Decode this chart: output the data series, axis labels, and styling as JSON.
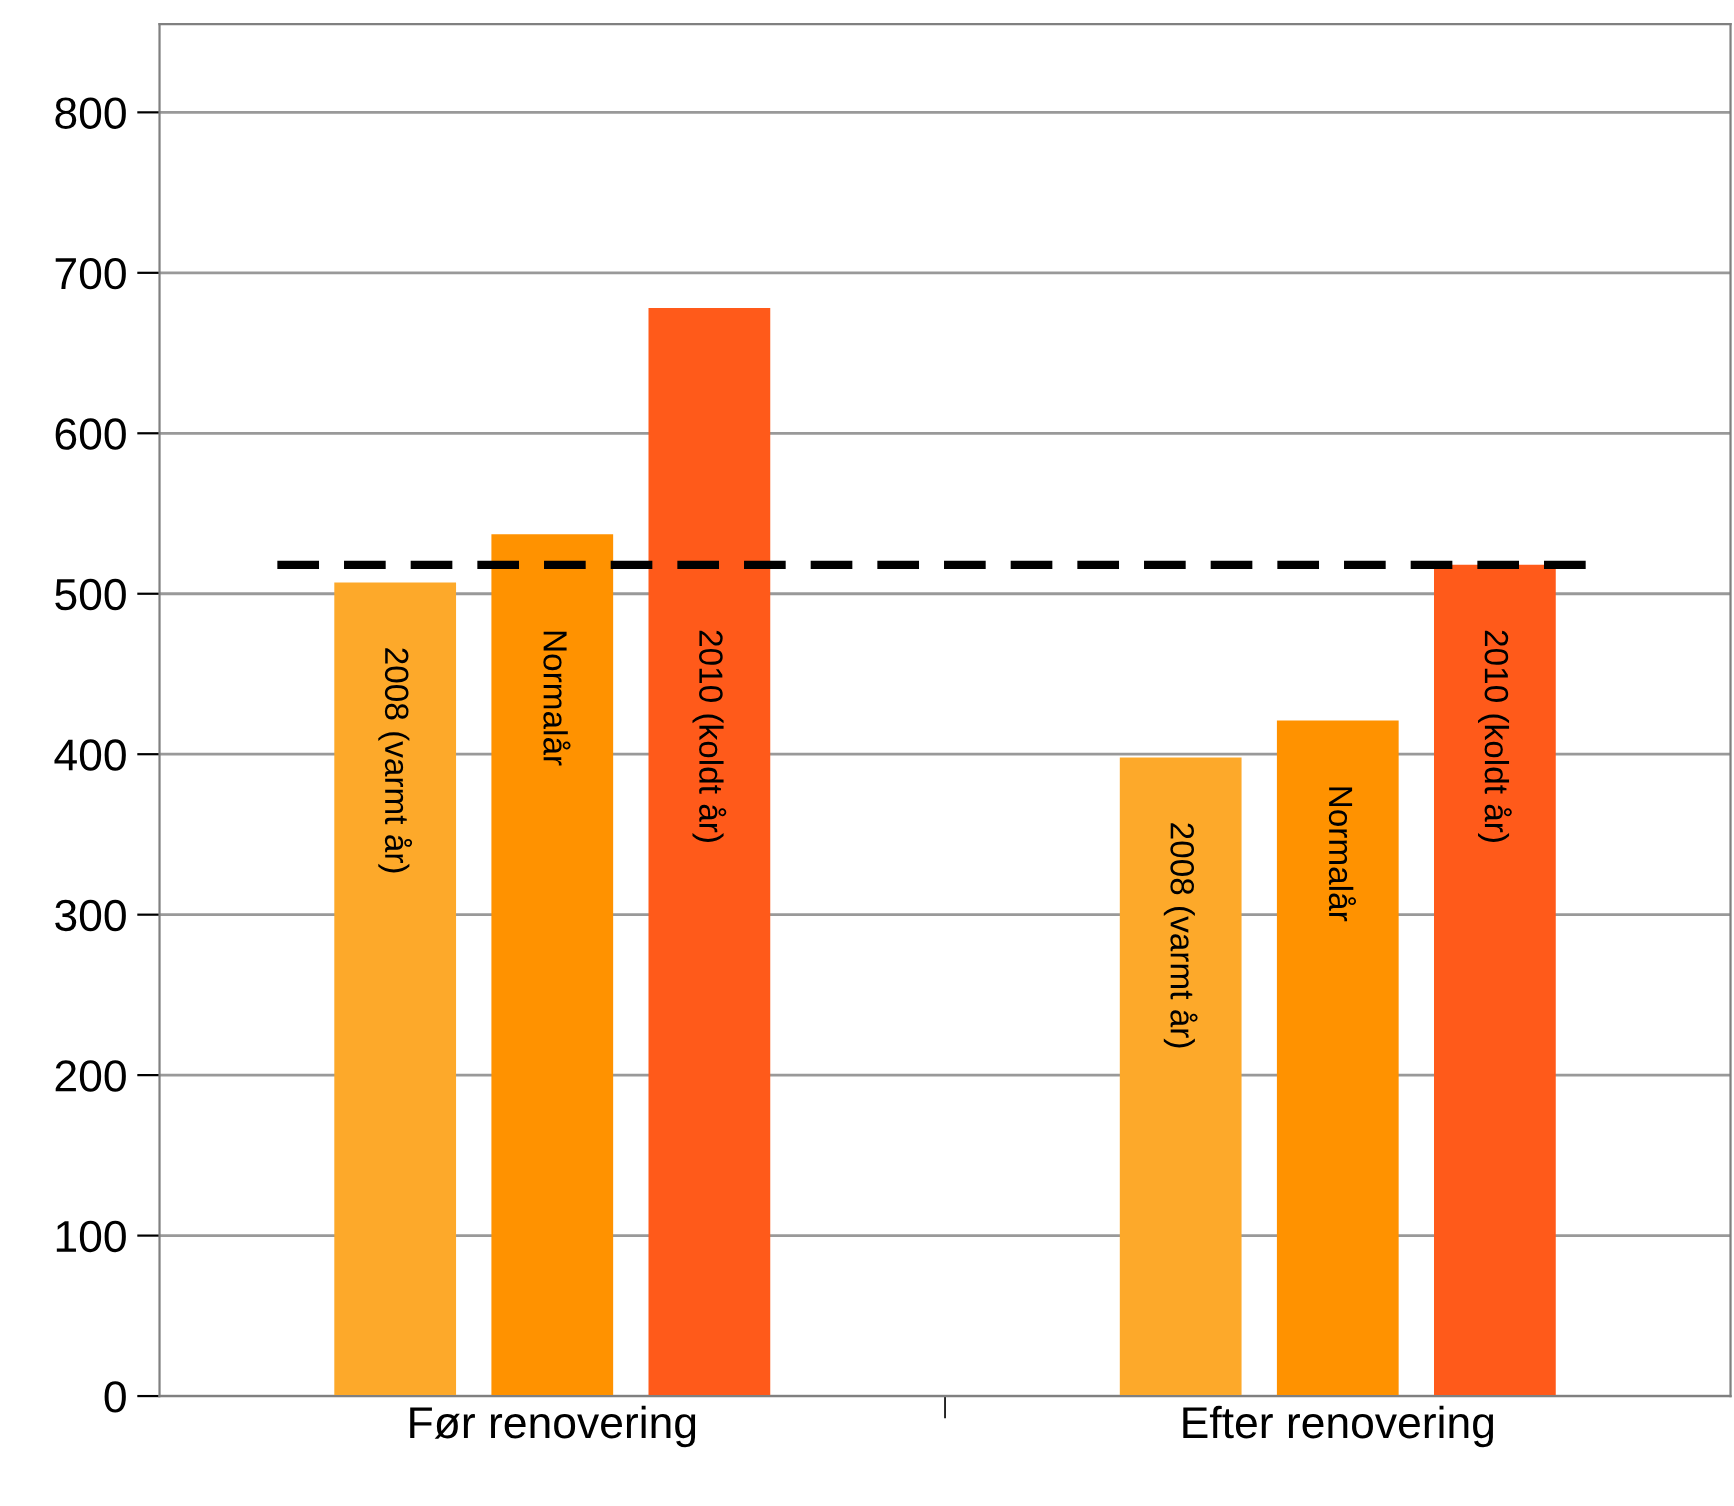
{
  "chart_data": {
    "type": "bar",
    "categories": [
      "Før renovering",
      "Efter renovering"
    ],
    "series": [
      {
        "name": "2008 (varmt år)",
        "color": "#fda92a",
        "values": [
          507,
          398
        ]
      },
      {
        "name": "Normalår",
        "color": "#ff9200",
        "values": [
          537,
          421
        ]
      },
      {
        "name": "2010 (koldt år)",
        "color": "#ff5a1a",
        "values": [
          678,
          518
        ]
      }
    ],
    "ylim": [
      0,
      855
    ],
    "yticks": [
      0,
      100,
      200,
      300,
      400,
      500,
      600,
      700,
      800
    ],
    "grid": "y",
    "legend": false,
    "ref_lines": [
      {
        "axis": "y",
        "value": 518,
        "color": "#000000",
        "line_style": "dashed"
      }
    ]
  }
}
